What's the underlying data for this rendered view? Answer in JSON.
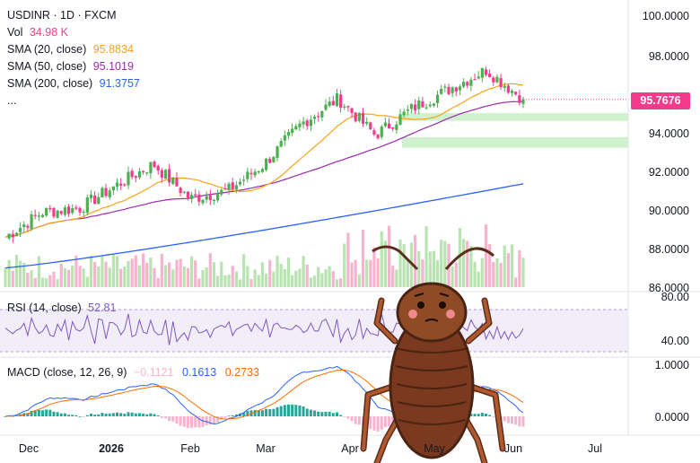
{
  "header": {
    "symbol_line": "USDINR · 1D · FXCM",
    "vol_label": "Vol",
    "vol_value": "34.98 K",
    "sma20_label": "SMA (20, close)",
    "sma20_value": "95.8834",
    "sma50_label": "SMA (50, close)",
    "sma50_value": "95.1019",
    "sma200_label": "SMA (200, close)",
    "sma200_value": "91.3757",
    "more": "..."
  },
  "last_price_tag": "95.7676",
  "rsi": {
    "label": "RSI (14, close)",
    "value": "52.81",
    "axis": [
      "80.00",
      "40.00"
    ]
  },
  "macd": {
    "label": "MACD (close, 12, 26, 9)",
    "hist": "−0.1121",
    "macd": "0.1613",
    "signal": "0.2733",
    "axis": [
      "1.0000",
      "0.0000"
    ]
  },
  "colors": {
    "up": "#26a69a",
    "up_light": "#4caf50",
    "down": "#f23b8a",
    "sma20": "#f7a21b",
    "sma50": "#9c27b0",
    "sma200": "#2962ff",
    "vol_up": "#b7e4b0",
    "vol_down": "#f7b3cd",
    "rsi_line": "#7e57c2",
    "macd_line": "#2962ff",
    "signal_line": "#ff6d00"
  },
  "chart_data": {
    "type": "candlestick",
    "symbol": "USDINR",
    "interval": "1D",
    "y_ticks": [
      "100.0000",
      "98.0000",
      "96.0000",
      "94.0000",
      "92.0000",
      "90.0000",
      "88.0000",
      "86.0000"
    ],
    "ylim": [
      86,
      100
    ],
    "x_ticks": [
      "Dec",
      "2026",
      "Feb",
      "Mar",
      "Apr",
      "May",
      "Jun",
      "Jul"
    ],
    "bold_ticks": [
      "2026"
    ],
    "anchors": [
      {
        "label": "Dec start",
        "value": 88.6
      },
      {
        "label": "Dec mid",
        "value": 89.9
      },
      {
        "label": "Jan start",
        "value": 90.1
      },
      {
        "label": "Jan mid",
        "value": 91.3
      },
      {
        "label": "Jan end",
        "value": 92.4
      },
      {
        "label": "Feb start",
        "value": 90.6
      },
      {
        "label": "Feb end",
        "value": 91.0
      },
      {
        "label": "Mar mid",
        "value": 92.4
      },
      {
        "label": "Mar end",
        "value": 94.5
      },
      {
        "label": "Apr start",
        "value": 95.8
      },
      {
        "label": "Apr mid",
        "value": 93.9
      },
      {
        "label": "Apr end",
        "value": 95.3
      },
      {
        "label": "May mid",
        "value": 96.3
      },
      {
        "label": "May end",
        "value": 97.3
      },
      {
        "label": "Jun start",
        "value": 95.77
      }
    ],
    "sma20_end": 95.8834,
    "sma50_end": 95.1019,
    "sma200_start": 87.0,
    "sma200_end": 91.3757,
    "demand_zones": [
      [
        94.65,
        95.05
      ],
      [
        93.25,
        93.8
      ]
    ],
    "last": 95.7676
  }
}
